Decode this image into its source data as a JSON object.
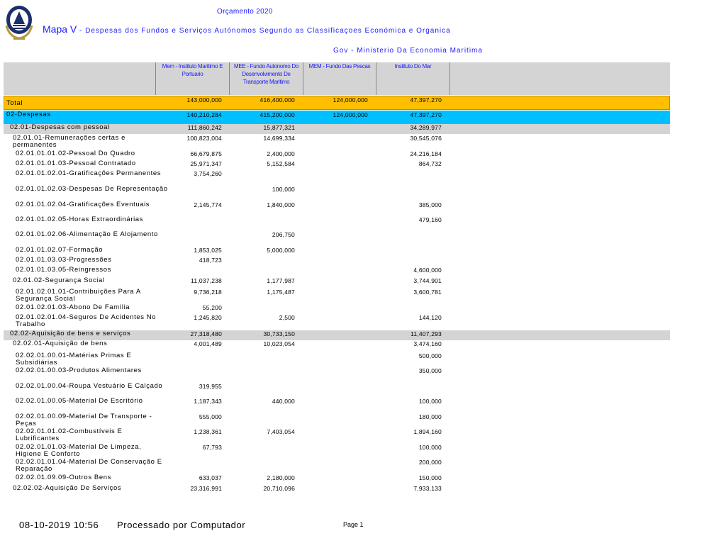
{
  "header": {
    "budget_title": "Orçamento 2020",
    "map_label": "Mapa V",
    "map_title": " - Despesas dos Fundos e Serviços Autónomos Segundo as Classificaçoes Económica e Organica",
    "ministry": "Gov - Ministerio Da Economia Maritima"
  },
  "columns": [
    "Mem - Instituto Maritimo E Portuario",
    "MEE - Fundo Autonomo Do Desenvolvimento De Transporte Maritimo",
    "MEM - Fundo Das Pescas",
    "Instituto Do Mar"
  ],
  "rows": [
    {
      "label": "Total",
      "values": [
        "143,000,000",
        "416,400,000",
        "124,000,000",
        "47,397,270"
      ]
    },
    {
      "label": "02-Despesas",
      "values": [
        "140,210,284",
        "415,200,000",
        "124,000,000",
        "47,397,270"
      ]
    },
    {
      "label": "02.01-Despesas com pessoal",
      "values": [
        "111,860,242",
        "15,877,321",
        "",
        "34,289,977"
      ]
    },
    {
      "label": "02.01.01-Remunerações certas e permanentes",
      "values": [
        "100,823,004",
        "14,699,334",
        "",
        "30,545,076"
      ]
    },
    {
      "label": "02.01.01.01.02-Pessoal Do Quadro",
      "values": [
        "66,679,875",
        "2,400,000",
        "",
        "24,216,184"
      ]
    },
    {
      "label": "02.01.01.01.03-Pessoal Contratado",
      "values": [
        "25,971,347",
        "5,152,584",
        "",
        "864,732"
      ]
    },
    {
      "label": "02.01.01.02.01-Gratificações Permanentes",
      "values": [
        "3,754,260",
        "",
        "",
        ""
      ]
    },
    {
      "label": "02.01.01.02.03-Despesas De Representação",
      "values": [
        "",
        "100,000",
        "",
        ""
      ]
    },
    {
      "label": "02.01.01.02.04-Gratificações Eventuais",
      "values": [
        "2,145,774",
        "1,840,000",
        "",
        "385,000"
      ]
    },
    {
      "label": "02.01.01.02.05-Horas Extraordinárias",
      "values": [
        "",
        "",
        "",
        "479,160"
      ]
    },
    {
      "label": "02.01.01.02.06-Alimentação E Alojamento",
      "values": [
        "",
        "206,750",
        "",
        ""
      ]
    },
    {
      "label": "02.01.01.02.07-Formação",
      "values": [
        "1,853,025",
        "5,000,000",
        "",
        ""
      ]
    },
    {
      "label": "02.01.01.03.03-Progressões",
      "values": [
        "418,723",
        "",
        "",
        ""
      ]
    },
    {
      "label": "02.01.01.03.05-Reingressos",
      "values": [
        "",
        "",
        "",
        "4,600,000"
      ]
    },
    {
      "label": "02.01.02-Segurança Social",
      "values": [
        "11,037,238",
        "1,177,987",
        "",
        "3,744,901"
      ]
    },
    {
      "label": "02.01.02.01.01-Contribuições Para A Segurança Social",
      "values": [
        "9,736,218",
        "1,175,487",
        "",
        "3,600,781"
      ]
    },
    {
      "label": "02.01.02.01.03-Abono De Família",
      "values": [
        "55,200",
        "",
        "",
        ""
      ]
    },
    {
      "label": "02.01.02.01.04-Seguros De Acidentes No Trabalho",
      "values": [
        "1,245,820",
        "2,500",
        "",
        "144,120"
      ]
    },
    {
      "label": "02.02-Aquisição de bens e serviços",
      "values": [
        "27,318,480",
        "30,733,150",
        "",
        "11,407,293"
      ]
    },
    {
      "label": "02.02.01-Aquisição de bens",
      "values": [
        "4,001,489",
        "10,023,054",
        "",
        "3,474,160"
      ]
    },
    {
      "label": "02.02.01.00.01-Matérias Primas E Subsidiárias",
      "values": [
        "",
        "",
        "",
        "500,000"
      ]
    },
    {
      "label": "02.02.01.00.03-Produtos Alimentares",
      "values": [
        "",
        "",
        "",
        "350,000"
      ]
    },
    {
      "label": "02.02.01.00.04-Roupa  Vestuário E Calçado",
      "values": [
        "319,955",
        "",
        "",
        ""
      ]
    },
    {
      "label": "02.02.01.00.05-Material De Escritório",
      "values": [
        "1,187,343",
        "440,000",
        "",
        "100,000"
      ]
    },
    {
      "label": "02.02.01.00.09-Material De Transporte - Peças",
      "values": [
        "555,000",
        "",
        "",
        "180,000"
      ]
    },
    {
      "label": "02.02.01.01.02-Combustíveis E Lubrificantes",
      "values": [
        "1,238,361",
        "7,403,054",
        "",
        "1,894,160"
      ]
    },
    {
      "label": "02.02.01.01.03-Material De Limpeza, Higiene E Conforto",
      "values": [
        "67,793",
        "",
        "",
        "100,000"
      ]
    },
    {
      "label": "02.02.01.01.04-Material De Conservação E Reparação",
      "values": [
        "",
        "",
        "",
        "200,000"
      ]
    },
    {
      "label": "02.02.01.09.09-Outros Bens",
      "values": [
        "633,037",
        "2,180,000",
        "",
        "150,000"
      ]
    },
    {
      "label": "02.02.02-Aquisição De Serviços",
      "values": [
        "23,316,991",
        "20,710,096",
        "",
        "7,933,133"
      ]
    }
  ],
  "footer": {
    "datetime": "08-10-2019 10:56",
    "processed": "Processado por Computador",
    "page": "Page 1"
  },
  "colors": {
    "total": "#ffbf00",
    "despesas": "#00bfff",
    "group": "#d4d4d4",
    "header_text": "#1a1aff"
  }
}
